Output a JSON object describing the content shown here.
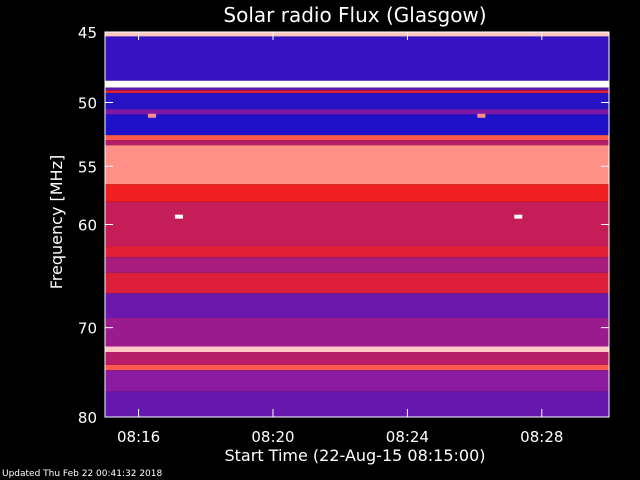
{
  "chart_data": {
    "type": "heatmap",
    "title": "Solar radio Flux (Glasgow)",
    "xlabel": "Start Time (22-Aug-15 08:15:00)",
    "ylabel": "Frequency [MHz]",
    "x_ticks": [
      "08:16",
      "08:20",
      "08:24",
      "08:28"
    ],
    "x_tick_minutes": [
      16,
      20,
      24,
      28
    ],
    "xlim_minutes": [
      15,
      30
    ],
    "y_ticks": [
      45,
      50,
      55,
      60,
      70,
      80
    ],
    "ylim": [
      45,
      80
    ],
    "y_scale": "log",
    "colors": {
      "background": "#000000",
      "axes": "#ffffff",
      "low": "#1010d0",
      "mid": "#8a1aa0",
      "high": "#ff2010",
      "max": "#ffffff"
    },
    "bands": [
      {
        "f0": 45.0,
        "f1": 45.3,
        "level": 0.95
      },
      {
        "f0": 45.3,
        "f1": 48.4,
        "level": 0.12
      },
      {
        "f0": 48.4,
        "f1": 48.9,
        "level": 1.0
      },
      {
        "f0": 48.9,
        "f1": 49.1,
        "level": 0.25
      },
      {
        "f0": 49.1,
        "f1": 49.3,
        "level": 0.7
      },
      {
        "f0": 49.3,
        "f1": 50.5,
        "level": 0.08
      },
      {
        "f0": 50.5,
        "f1": 50.9,
        "level": 0.35
      },
      {
        "f0": 50.9,
        "f1": 52.5,
        "level": 0.05
      },
      {
        "f0": 52.5,
        "f1": 52.9,
        "level": 0.85
      },
      {
        "f0": 52.9,
        "f1": 53.3,
        "level": 0.55
      },
      {
        "f0": 53.3,
        "f1": 56.5,
        "level": 0.9
      },
      {
        "f0": 56.5,
        "f1": 58.0,
        "level": 0.75
      },
      {
        "f0": 58.0,
        "f1": 62.0,
        "level": 0.6
      },
      {
        "f0": 62.0,
        "f1": 63.0,
        "level": 0.7
      },
      {
        "f0": 63.0,
        "f1": 64.5,
        "level": 0.5
      },
      {
        "f0": 64.5,
        "f1": 66.5,
        "level": 0.68
      },
      {
        "f0": 66.5,
        "f1": 69.0,
        "level": 0.3
      },
      {
        "f0": 69.0,
        "f1": 72.0,
        "level": 0.45
      },
      {
        "f0": 72.0,
        "f1": 72.6,
        "level": 0.95
      },
      {
        "f0": 72.6,
        "f1": 74.0,
        "level": 0.55
      },
      {
        "f0": 74.0,
        "f1": 74.6,
        "level": 0.85
      },
      {
        "f0": 74.6,
        "f1": 77.0,
        "level": 0.4
      },
      {
        "f0": 77.0,
        "f1": 80.0,
        "level": 0.28
      }
    ],
    "events": [
      {
        "t": 17.2,
        "f": 59.3,
        "level": 1.0
      },
      {
        "t": 27.3,
        "f": 59.3,
        "level": 1.0
      },
      {
        "t": 16.4,
        "f": 51.0,
        "level": 0.9
      },
      {
        "t": 26.2,
        "f": 51.0,
        "level": 0.9
      }
    ]
  },
  "footer": {
    "updated": "Updated Thu Feb 22 00:41:32 2018"
  }
}
